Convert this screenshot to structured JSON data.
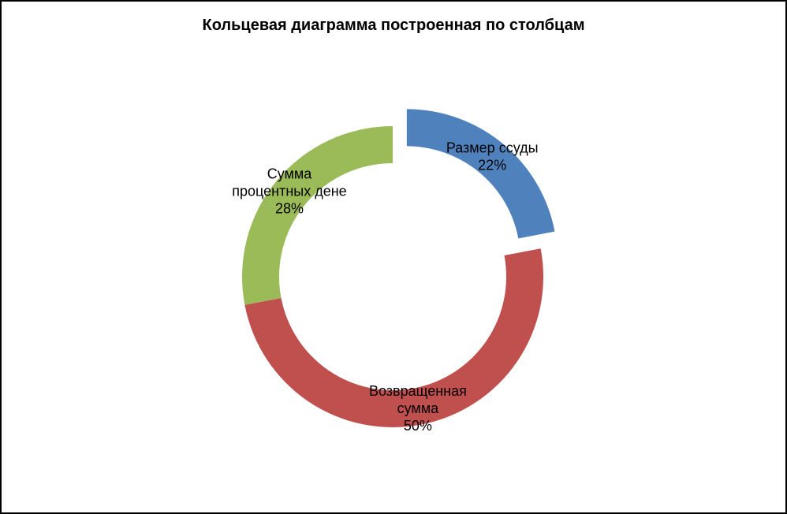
{
  "chart_data": {
    "type": "pie",
    "subtype": "doughnut",
    "title": "Кольцевая диаграмма построенная по столбцам",
    "slices": [
      {
        "name": "Размер ссуды",
        "label_lines": [
          "Размер ссуды",
          "22%"
        ],
        "percent": 22,
        "color": "#4F81BD",
        "exploded": true
      },
      {
        "name": "Возвращенная сумма",
        "label_lines": [
          "Возвращенная",
          "сумма",
          "50%"
        ],
        "percent": 50,
        "color": "#C0504D",
        "exploded": false
      },
      {
        "name": "Сумма процентных дене",
        "label_lines": [
          "Сумма",
          "процентных дене",
          "28%"
        ],
        "percent": 28,
        "color": "#9BBB59",
        "exploded": false
      }
    ],
    "start_angle_deg": 0,
    "direction": "clockwise",
    "legend": "none",
    "data_labels": "category name and percentage"
  }
}
